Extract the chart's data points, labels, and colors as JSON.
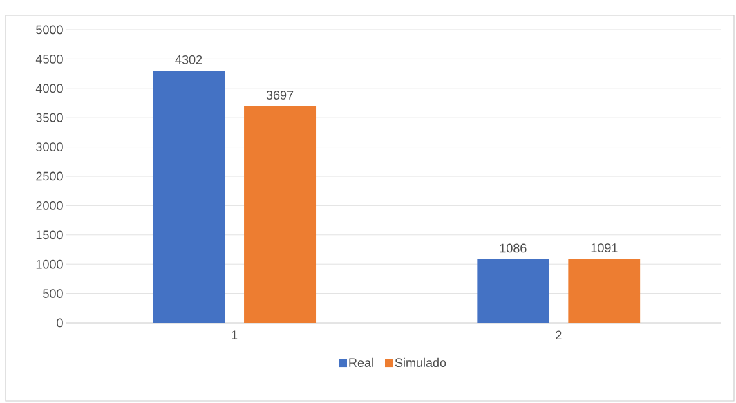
{
  "chart_data": {
    "type": "bar",
    "categories": [
      "1",
      "2"
    ],
    "series": [
      {
        "name": "Real",
        "color": "#4472c4",
        "values": [
          4302,
          1086
        ]
      },
      {
        "name": "Simulado",
        "color": "#ed7d31",
        "values": [
          3697,
          1091
        ]
      }
    ],
    "ylim": [
      0,
      5000
    ],
    "yticks": [
      0,
      500,
      1000,
      1500,
      2000,
      2500,
      3000,
      3500,
      4000,
      4500,
      5000
    ],
    "grid": "y",
    "legend": "bottom",
    "data_labels": true
  }
}
